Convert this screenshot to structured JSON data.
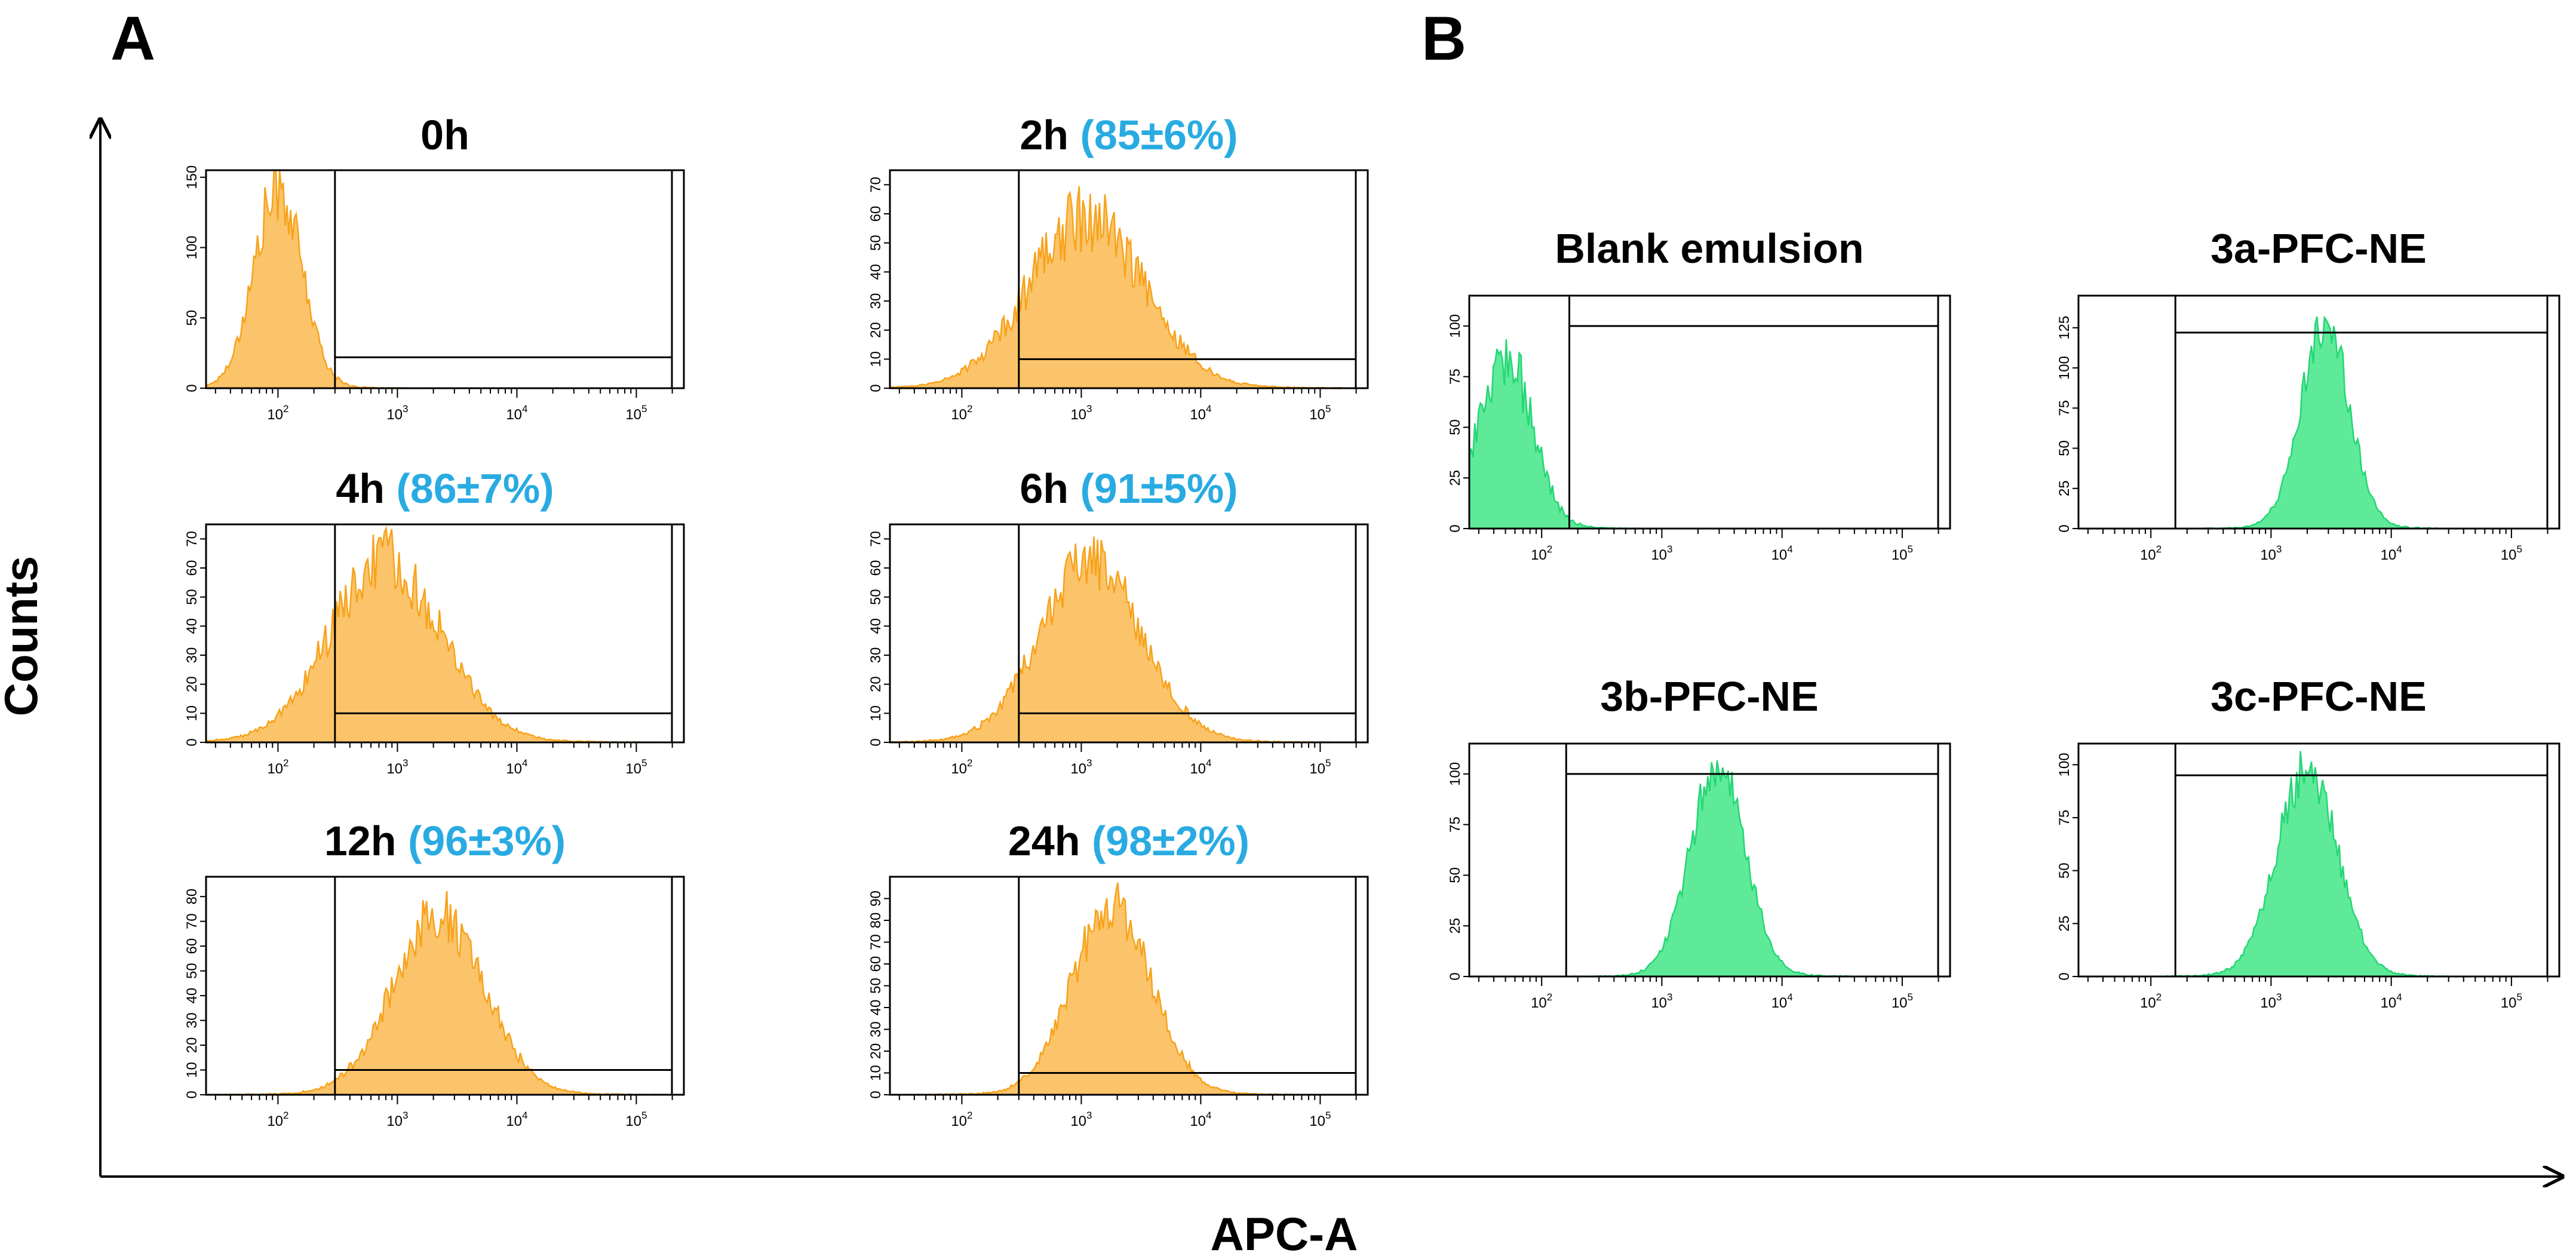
{
  "figure": {
    "axis_x_label": "APC-A",
    "axis_y_label": "Counts",
    "colors": {
      "panel_a_fill": "#FBC46A",
      "panel_a_line": "#F7A21B",
      "panel_b_fill": "#5EEA98",
      "panel_b_line": "#25D675",
      "percent_text": "#29ABE2"
    }
  },
  "chart_data": [
    {
      "panel": "A",
      "type": "histogram",
      "title": "0h",
      "percent": "",
      "x_scale": "log",
      "xlim": [
        25,
        250000
      ],
      "ylim": [
        0,
        155
      ],
      "y_ticks": [
        0,
        50,
        100,
        150
      ],
      "x_ticks": [
        100,
        1000,
        10000,
        100000
      ],
      "x_tick_labels": [
        "10",
        "10",
        "10",
        "10"
      ],
      "x_tick_exponents": [
        "2",
        "3",
        "4",
        "5"
      ],
      "peak_x": 100,
      "peak_sigma_decades": 0.2,
      "peak_height": 140,
      "noise": 0.18,
      "gate_start": 300,
      "gate_level": 22
    },
    {
      "panel": "A",
      "type": "histogram",
      "title": "2h",
      "percent": "(85±6%)",
      "x_scale": "log",
      "xlim": [
        25,
        250000
      ],
      "ylim": [
        0,
        75
      ],
      "y_ticks": [
        0,
        10,
        20,
        30,
        40,
        50,
        60,
        70
      ],
      "x_ticks": [
        100,
        1000,
        10000,
        100000
      ],
      "x_tick_labels": [
        "10",
        "10",
        "10",
        "10"
      ],
      "x_tick_exponents": [
        "2",
        "3",
        "4",
        "5"
      ],
      "peak_x": 1100,
      "peak_sigma_decades": 0.48,
      "peak_height": 58,
      "noise": 0.2,
      "gate_start": 300,
      "gate_level": 10
    },
    {
      "panel": "A",
      "type": "histogram",
      "title": "4h",
      "percent": "(86±7%)",
      "x_scale": "log",
      "xlim": [
        25,
        250000
      ],
      "ylim": [
        0,
        75
      ],
      "y_ticks": [
        0,
        10,
        20,
        30,
        40,
        50,
        60,
        70
      ],
      "x_ticks": [
        100,
        1000,
        10000,
        100000
      ],
      "x_tick_labels": [
        "10",
        "10",
        "10",
        "10"
      ],
      "x_tick_exponents": [
        "2",
        "3",
        "4",
        "5"
      ],
      "peak_x": 800,
      "peak_sigma_decades": 0.46,
      "peak_height": 62,
      "noise": 0.18,
      "gate_start": 300,
      "gate_level": 10
    },
    {
      "panel": "A",
      "type": "histogram",
      "title": "6h",
      "percent": "(91±5%)",
      "x_scale": "log",
      "xlim": [
        25,
        250000
      ],
      "ylim": [
        0,
        75
      ],
      "y_ticks": [
        0,
        10,
        20,
        30,
        40,
        50,
        60,
        70
      ],
      "x_ticks": [
        100,
        1000,
        10000,
        100000
      ],
      "x_tick_labels": [
        "10",
        "10",
        "10",
        "10"
      ],
      "x_tick_exponents": [
        "2",
        "3",
        "4",
        "5"
      ],
      "peak_x": 1200,
      "peak_sigma_decades": 0.42,
      "peak_height": 62,
      "noise": 0.16,
      "gate_start": 300,
      "gate_level": 10
    },
    {
      "panel": "A",
      "type": "histogram",
      "title": "12h",
      "percent": "(96±3%)",
      "x_scale": "log",
      "xlim": [
        25,
        250000
      ],
      "ylim": [
        0,
        88
      ],
      "y_ticks": [
        0,
        10,
        20,
        30,
        40,
        50,
        60,
        70,
        80
      ],
      "x_ticks": [
        100,
        1000,
        10000,
        100000
      ],
      "x_tick_labels": [
        "10",
        "10",
        "10",
        "10"
      ],
      "x_tick_exponents": [
        "2",
        "3",
        "4",
        "5"
      ],
      "peak_x": 2200,
      "peak_sigma_decades": 0.38,
      "peak_height": 72,
      "noise": 0.16,
      "gate_start": 300,
      "gate_level": 10
    },
    {
      "panel": "A",
      "type": "histogram",
      "title": "24h",
      "percent": "(98±2%)",
      "x_scale": "log",
      "xlim": [
        25,
        250000
      ],
      "ylim": [
        0,
        100
      ],
      "y_ticks": [
        0,
        10,
        20,
        30,
        40,
        50,
        60,
        70,
        80,
        90
      ],
      "x_ticks": [
        100,
        1000,
        10000,
        100000
      ],
      "x_tick_labels": [
        "10",
        "10",
        "10",
        "10"
      ],
      "x_tick_exponents": [
        "2",
        "3",
        "4",
        "5"
      ],
      "peak_x": 1800,
      "peak_sigma_decades": 0.33,
      "peak_height": 85,
      "noise": 0.15,
      "gate_start": 300,
      "gate_level": 10
    },
    {
      "panel": "B",
      "type": "histogram",
      "title": "Blank emulsion",
      "percent": "",
      "x_scale": "log",
      "xlim": [
        25,
        250000
      ],
      "ylim": [
        0,
        115
      ],
      "y_ticks": [
        0,
        25,
        50,
        75,
        100
      ],
      "x_ticks": [
        100,
        1000,
        10000,
        100000
      ],
      "x_tick_labels": [
        "10",
        "10",
        "10",
        "10"
      ],
      "x_tick_exponents": [
        "2",
        "3",
        "4",
        "5"
      ],
      "peak_x": 50,
      "peak_sigma_decades": 0.22,
      "peak_height": 85,
      "noise": 0.2,
      "gate_start": 170,
      "gate_level": 100
    },
    {
      "panel": "B",
      "type": "histogram",
      "title": "3a-PFC-NE",
      "percent": "",
      "x_scale": "log",
      "xlim": [
        25,
        250000
      ],
      "ylim": [
        0,
        145
      ],
      "y_ticks": [
        0,
        25,
        50,
        75,
        100,
        125
      ],
      "x_ticks": [
        100,
        1000,
        10000,
        100000
      ],
      "x_tick_labels": [
        "10",
        "10",
        "10",
        "10"
      ],
      "x_tick_exponents": [
        "2",
        "3",
        "4",
        "5"
      ],
      "peak_x": 2800,
      "peak_sigma_decades": 0.2,
      "peak_height": 128,
      "noise": 0.12,
      "gate_start": 160,
      "gate_level": 122
    },
    {
      "panel": "B",
      "type": "histogram",
      "title": "3b-PFC-NE",
      "percent": "",
      "x_scale": "log",
      "xlim": [
        25,
        250000
      ],
      "ylim": [
        0,
        115
      ],
      "y_ticks": [
        0,
        25,
        50,
        75,
        100
      ],
      "x_ticks": [
        100,
        1000,
        10000,
        100000
      ],
      "x_tick_labels": [
        "10",
        "10",
        "10",
        "10"
      ],
      "x_tick_exponents": [
        "2",
        "3",
        "4",
        "5"
      ],
      "peak_x": 2900,
      "peak_sigma_decades": 0.23,
      "peak_height": 102,
      "noise": 0.12,
      "gate_start": 160,
      "gate_level": 100
    },
    {
      "panel": "B",
      "type": "histogram",
      "title": "3c-PFC-NE",
      "percent": "",
      "x_scale": "log",
      "xlim": [
        25,
        250000
      ],
      "ylim": [
        0,
        110
      ],
      "y_ticks": [
        0,
        25,
        50,
        75,
        100
      ],
      "x_ticks": [
        100,
        1000,
        10000,
        100000
      ],
      "x_tick_labels": [
        "10",
        "10",
        "10",
        "10"
      ],
      "x_tick_exponents": [
        "2",
        "3",
        "4",
        "5"
      ],
      "peak_x": 2000,
      "peak_sigma_decades": 0.25,
      "peak_height": 98,
      "noise": 0.12,
      "gate_start": 160,
      "gate_level": 95
    }
  ]
}
